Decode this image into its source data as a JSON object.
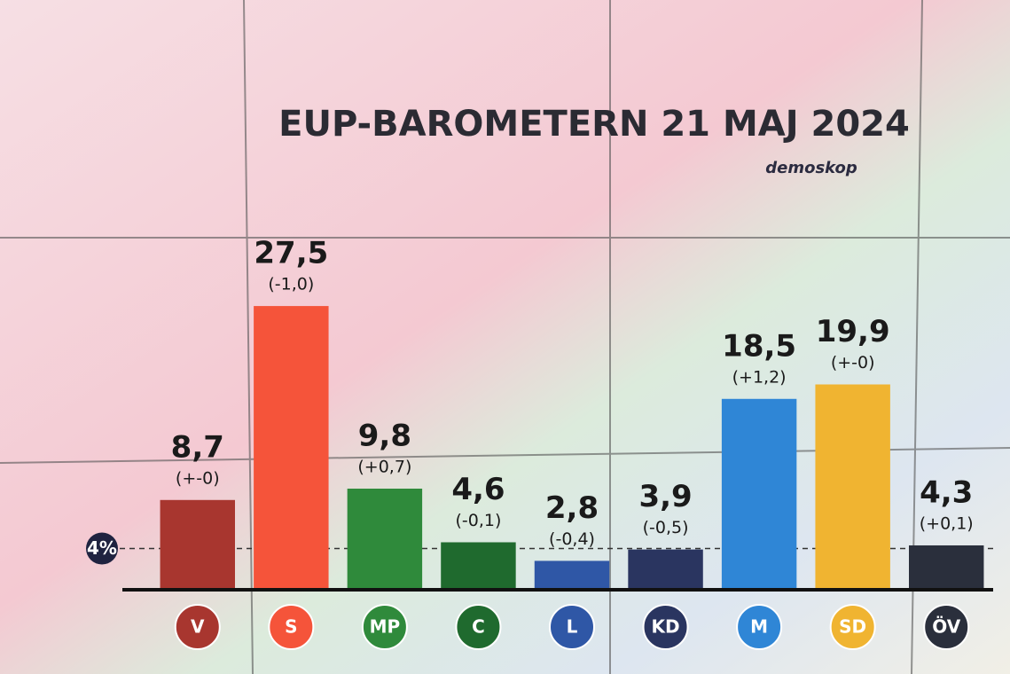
{
  "chart_data": {
    "type": "bar",
    "title": "EUP-BAROMETERN 21 MAJ 2024",
    "source": "demoskop",
    "categories": [
      "V",
      "S",
      "MP",
      "C",
      "L",
      "KD",
      "M",
      "SD",
      "ÖV"
    ],
    "values": [
      8.7,
      27.5,
      9.8,
      4.6,
      2.8,
      3.9,
      18.5,
      19.9,
      4.3
    ],
    "value_labels": [
      "8,7",
      "27,5",
      "9,8",
      "4,6",
      "2,8",
      "3,9",
      "18,5",
      "19,9",
      "4,3"
    ],
    "change_labels": [
      "(+-0)",
      "(-1,0)",
      "(+0,7)",
      "(-0,1)",
      "(-0,4)",
      "(-0,5)",
      "(+1,2)",
      "(+-0)",
      "(+0,1)"
    ],
    "colors": [
      "#a8362f",
      "#f5543a",
      "#2f8a3b",
      "#1f6a2e",
      "#2f57a6",
      "#2a3560",
      "#2f86d6",
      "#f0b431",
      "#2a2f3c"
    ],
    "threshold": {
      "value": 4,
      "label": "4%"
    },
    "ylim": [
      0,
      30
    ]
  }
}
